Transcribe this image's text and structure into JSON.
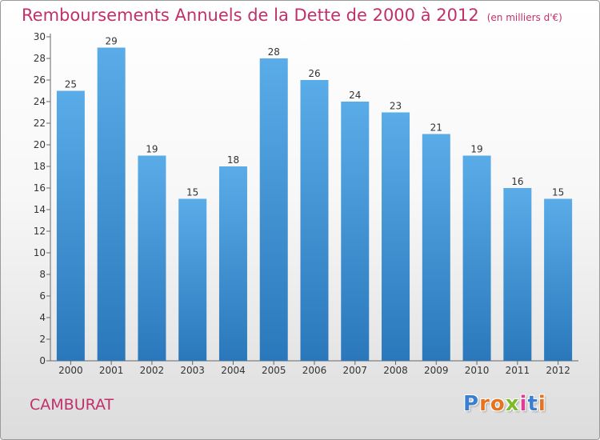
{
  "header": {
    "title": "Remboursements Annuels de la Dette de 2000 à 2012",
    "subtitle": "(en milliers d'€)"
  },
  "commune": "CAMBURAT",
  "logo": {
    "text": "Proxiti",
    "letters": [
      "P",
      "r",
      "o",
      "x",
      "i",
      "t",
      "i"
    ],
    "colors": [
      "#3a7fd0",
      "#e8731f",
      "#e8731f",
      "#7dbb2a",
      "#e03c96",
      "#3a7fd0",
      "#e8731f"
    ]
  },
  "chart_data": {
    "type": "bar",
    "categories": [
      "2000",
      "2001",
      "2002",
      "2003",
      "2004",
      "2005",
      "2006",
      "2007",
      "2008",
      "2009",
      "2010",
      "2011",
      "2012"
    ],
    "values": [
      25,
      29,
      19,
      15,
      18,
      28,
      26,
      24,
      23,
      21,
      19,
      16,
      15
    ],
    "ylim": [
      0,
      30
    ],
    "yticks": [
      0,
      2,
      4,
      6,
      8,
      10,
      12,
      14,
      16,
      18,
      20,
      22,
      24,
      26,
      28,
      30
    ],
    "grid": false,
    "colors": {
      "bar_light": "#5aace8",
      "bar_dark": "#2a78bb",
      "title": "#c0306a"
    }
  }
}
